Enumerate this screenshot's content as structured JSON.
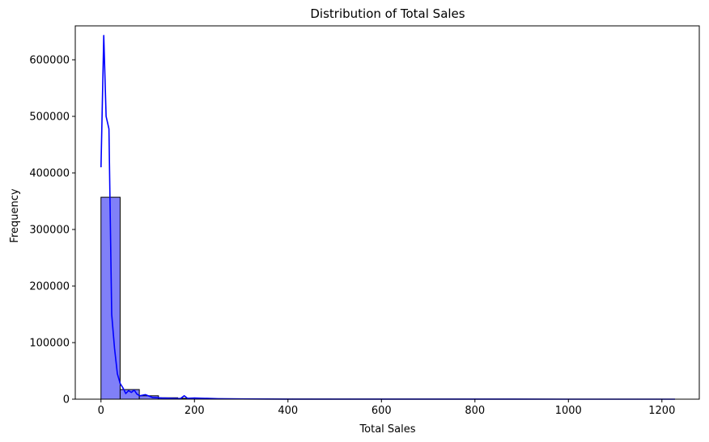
{
  "chart_data": {
    "type": "bar",
    "title": "Distribution of Total Sales",
    "xlabel": "Total Sales",
    "ylabel": "Frequency",
    "xlim": [
      -55,
      1280
    ],
    "ylim": [
      0,
      660000
    ],
    "x_ticks": [
      0,
      200,
      400,
      600,
      800,
      1000,
      1200
    ],
    "y_ticks": [
      0,
      100000,
      200000,
      300000,
      400000,
      500000,
      600000
    ],
    "bins": {
      "edges": [
        0,
        41,
        82,
        123,
        164,
        205,
        246,
        287,
        328,
        369,
        410,
        451,
        492,
        533,
        574,
        615,
        656,
        697,
        738,
        779,
        820,
        861,
        902,
        943,
        984,
        1025,
        1066,
        1107,
        1148,
        1189,
        1230
      ],
      "counts": [
        357000,
        17000,
        6000,
        2500,
        1500,
        700,
        400,
        250,
        150,
        100,
        80,
        60,
        40,
        30,
        25,
        20,
        15,
        12,
        10,
        8,
        6,
        5,
        4,
        3,
        3,
        2,
        2,
        2,
        1,
        1
      ]
    },
    "bar_fill": "#8080f8",
    "bar_edge": "#000000",
    "kde": {
      "name": "",
      "color": "#0000ff",
      "x": [
        0,
        6,
        11,
        17,
        23,
        29,
        35,
        41,
        47,
        53,
        59,
        65,
        71,
        77,
        83,
        95,
        110,
        130,
        150,
        170,
        178,
        185,
        200,
        250,
        300,
        400,
        500,
        600,
        800,
        1000,
        1228
      ],
      "y": [
        410000,
        643000,
        500000,
        478000,
        150000,
        90000,
        45000,
        28000,
        20000,
        10000,
        15000,
        12000,
        16000,
        9000,
        6000,
        8000,
        3000,
        2000,
        1500,
        1000,
        6000,
        1500,
        2000,
        800,
        400,
        200,
        150,
        100,
        80,
        50,
        20
      ]
    }
  }
}
